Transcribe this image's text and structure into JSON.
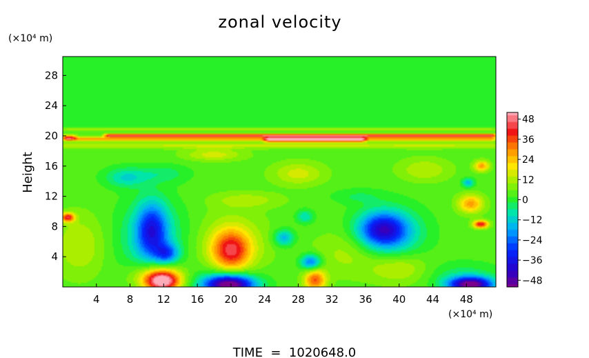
{
  "chart_data": {
    "type": "heatmap",
    "title": "zonal velocity",
    "ylabel": "Height",
    "x_unit": "(×10⁴ m)",
    "y_unit": "(×10⁴ m)",
    "xlim": [
      0,
      51.5
    ],
    "ylim": [
      0,
      30.5
    ],
    "x_ticks": [
      4,
      8,
      12,
      16,
      20,
      24,
      28,
      32,
      36,
      40,
      44,
      48
    ],
    "y_ticks": [
      4,
      8,
      12,
      16,
      20,
      24,
      28
    ],
    "colorbar": {
      "range": [
        -52,
        52
      ],
      "ticks": [
        48,
        36,
        24,
        12,
        0,
        -12,
        -24,
        -36,
        -48
      ],
      "tick_labels": [
        "48",
        "36",
        "24",
        "12",
        "0",
        "−12",
        "−24",
        "−36",
        "−48"
      ]
    },
    "background_value": 4,
    "features": [
      {
        "x": 11.8,
        "y": 0.7,
        "sx": 2.0,
        "sy": 1.3,
        "value": 46
      },
      {
        "x": 11.5,
        "y": 1.6,
        "sx": 3.2,
        "sy": 1.8,
        "value": 20
      },
      {
        "x": 19.8,
        "y": 0.3,
        "sx": 3.0,
        "sy": 1.3,
        "value": -62
      },
      {
        "x": 18.5,
        "y": 1.7,
        "sx": 5.5,
        "sy": 2.0,
        "value": -6
      },
      {
        "x": 30.0,
        "y": 0.9,
        "sx": 1.3,
        "sy": 1.4,
        "value": 30
      },
      {
        "x": 48.5,
        "y": 0.3,
        "sx": 2.6,
        "sy": 1.0,
        "value": -56
      },
      {
        "x": 47.5,
        "y": 1.5,
        "sx": 4.5,
        "sy": 1.8,
        "value": -8
      },
      {
        "x": 20.0,
        "y": 4.8,
        "sx": 2.2,
        "sy": 2.6,
        "value": 30
      },
      {
        "x": 20.2,
        "y": 5.2,
        "sx": 4.0,
        "sy": 4.5,
        "value": 12
      },
      {
        "x": 10.6,
        "y": 7.5,
        "sx": 1.8,
        "sy": 3.6,
        "value": -30
      },
      {
        "x": 12.4,
        "y": 4.4,
        "sx": 1.4,
        "sy": 1.3,
        "value": -24
      },
      {
        "x": 10.5,
        "y": 6.5,
        "sx": 4.0,
        "sy": 5.0,
        "value": -14
      },
      {
        "x": 38.0,
        "y": 7.6,
        "sx": 2.8,
        "sy": 2.2,
        "value": -34
      },
      {
        "x": 39.0,
        "y": 7.0,
        "sx": 4.0,
        "sy": 3.5,
        "value": -16
      },
      {
        "x": 29.5,
        "y": 3.3,
        "sx": 1.2,
        "sy": 1.0,
        "value": -28
      },
      {
        "x": 26.3,
        "y": 6.5,
        "sx": 1.2,
        "sy": 1.1,
        "value": -20
      },
      {
        "x": 28.8,
        "y": 9.3,
        "sx": 1.0,
        "sy": 0.9,
        "value": -14
      },
      {
        "x": 2.0,
        "y": 5.5,
        "sx": 3.0,
        "sy": 4.0,
        "value": 10
      },
      {
        "x": 34.0,
        "y": 4.5,
        "sx": 4.0,
        "sy": 3.0,
        "value": 8
      },
      {
        "x": 40.0,
        "y": 2.5,
        "sx": 3.5,
        "sy": 2.0,
        "value": 12
      },
      {
        "x": 0.6,
        "y": 9.2,
        "sx": 0.8,
        "sy": 0.6,
        "value": 36
      },
      {
        "x": 49.7,
        "y": 8.3,
        "sx": 0.9,
        "sy": 0.5,
        "value": 38
      },
      {
        "x": 48.5,
        "y": 11.0,
        "sx": 1.5,
        "sy": 1.2,
        "value": 24
      },
      {
        "x": 48.2,
        "y": 13.8,
        "sx": 0.7,
        "sy": 0.6,
        "value": -20
      },
      {
        "x": 49.8,
        "y": 16.0,
        "sx": 0.9,
        "sy": 0.7,
        "value": 24
      },
      {
        "x": 7.5,
        "y": 14.5,
        "sx": 2.5,
        "sy": 1.3,
        "value": -14
      },
      {
        "x": 12.0,
        "y": 15.0,
        "sx": 3.0,
        "sy": 1.2,
        "value": -8
      },
      {
        "x": 28.0,
        "y": 15.0,
        "sx": 3.0,
        "sy": 1.5,
        "value": 12
      },
      {
        "x": 43.0,
        "y": 15.5,
        "sx": 3.0,
        "sy": 1.5,
        "value": 10
      },
      {
        "x": 22.0,
        "y": 11.5,
        "sx": 4.0,
        "sy": 1.0,
        "value": 8
      },
      {
        "x": 35.0,
        "y": 12.0,
        "sx": 3.0,
        "sy": 1.0,
        "value": -6
      },
      {
        "x": 18.0,
        "y": 17.5,
        "sx": 3.5,
        "sy": 0.8,
        "value": 12
      }
    ],
    "bands": [
      {
        "y": 20.05,
        "sy": 0.22,
        "value": 40,
        "x_from": 5,
        "x_to": 51.5
      },
      {
        "y": 19.6,
        "sy": 0.28,
        "value": 24,
        "x_from": 0,
        "x_to": 51.5
      },
      {
        "y": 19.5,
        "sy": 0.35,
        "value": 30,
        "x_from": 24,
        "x_to": 36
      },
      {
        "y": 20.9,
        "sy": 0.25,
        "value": 16,
        "x_from": 0,
        "x_to": 51.5
      },
      {
        "y": 18.7,
        "sy": 0.4,
        "value": 10,
        "x_from": 0,
        "x_to": 51.5
      },
      {
        "y": 19.8,
        "sy": 0.35,
        "value": 24,
        "x_from": 0,
        "x_to": 1.5
      }
    ]
  },
  "time_label": "TIME  =  1020648.0"
}
